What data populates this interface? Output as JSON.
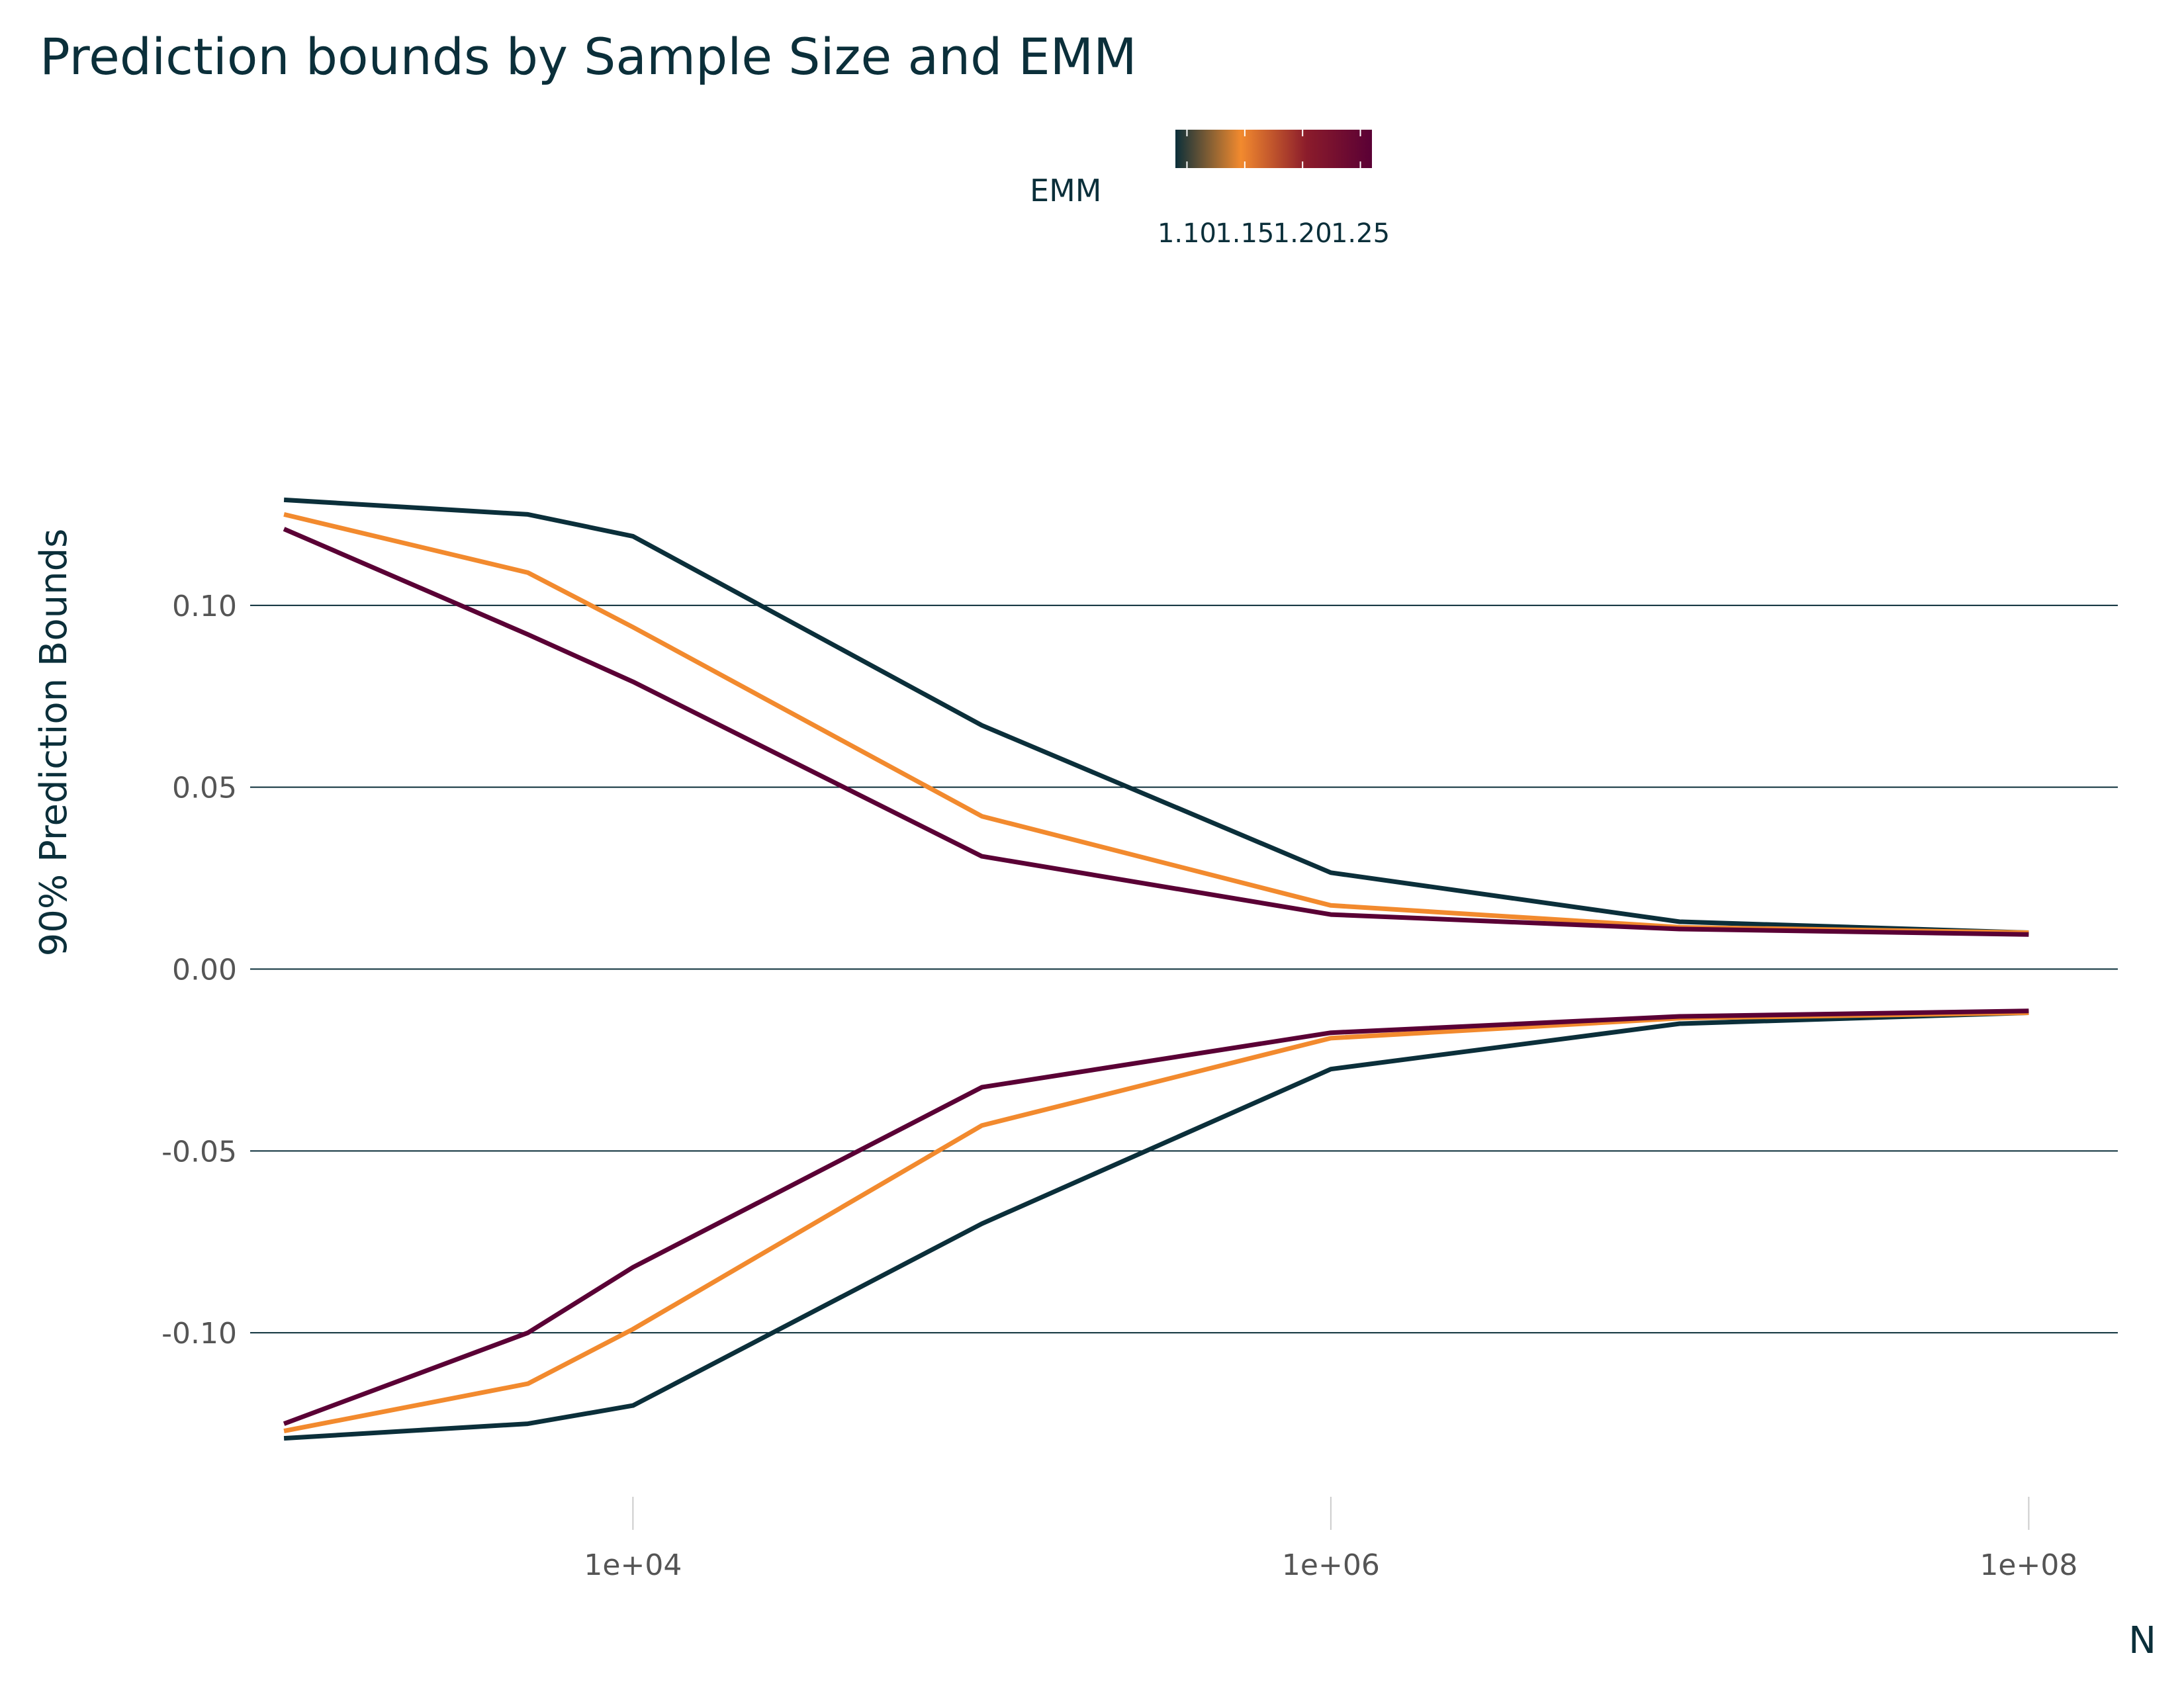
{
  "chart_data": {
    "type": "line",
    "title": "Prediction bounds by Sample Size and EMM",
    "xlabel": "N",
    "ylabel": "90% Prediction Bounds",
    "x_scale": "log10",
    "xlim": [
      800,
      180000000
    ],
    "ylim": [
      -0.152,
      0.15
    ],
    "x_ticks": [
      10000,
      1000000,
      100000000
    ],
    "x_tick_labels": [
      "1e+04",
      "1e+06",
      "1e+08"
    ],
    "y_ticks": [
      -0.1,
      -0.05,
      0.0,
      0.05,
      0.1
    ],
    "y_tick_labels": [
      "-0.10",
      "-0.05",
      "0.00",
      "0.05",
      "0.10"
    ],
    "grid": {
      "horizontal_major": true,
      "vertical": false
    },
    "legend": {
      "title": "EMM",
      "type": "colorbar",
      "position": "top",
      "range": [
        1.09,
        1.26
      ],
      "ticks": [
        1.1,
        1.15,
        1.2,
        1.25
      ],
      "tick_labels": [
        "1.10",
        "1.15",
        "1.20",
        "1.25"
      ],
      "gradient": [
        "#0b2f3a",
        "#f28a2e",
        "#8b1c2b",
        "#5a0035"
      ]
    },
    "x": [
      1000,
      5000,
      10000,
      100000,
      1000000,
      10000000,
      100000000
    ],
    "series": [
      {
        "bound": "upper",
        "emm": 1.1,
        "color": "#0b2f3a",
        "values": [
          0.129,
          0.125,
          0.119,
          0.067,
          0.0265,
          0.013,
          0.01
        ]
      },
      {
        "bound": "upper",
        "emm": 1.15,
        "color": "#f28a2e",
        "values": [
          0.125,
          0.109,
          0.094,
          0.042,
          0.0175,
          0.0115,
          0.01
        ]
      },
      {
        "bound": "upper",
        "emm": 1.25,
        "color": "#5a0035",
        "values": [
          0.121,
          0.092,
          0.079,
          0.031,
          0.015,
          0.011,
          0.0095
        ]
      },
      {
        "bound": "lower",
        "emm": 1.1,
        "color": "#0b2f3a",
        "values": [
          -0.129,
          -0.125,
          -0.12,
          -0.07,
          -0.0275,
          -0.015,
          -0.012
        ]
      },
      {
        "bound": "lower",
        "emm": 1.15,
        "color": "#f28a2e",
        "values": [
          -0.127,
          -0.114,
          -0.099,
          -0.043,
          -0.019,
          -0.0135,
          -0.012
        ]
      },
      {
        "bound": "lower",
        "emm": 1.25,
        "color": "#5a0035",
        "values": [
          -0.125,
          -0.1,
          -0.082,
          -0.0325,
          -0.0175,
          -0.013,
          -0.0115
        ]
      }
    ]
  },
  "colors": {
    "text_dark": "#0b2f3a",
    "tick_text": "#555555",
    "grid": "#0b2f3a",
    "xtick_mark": "#cccccc",
    "background": "#ffffff"
  }
}
